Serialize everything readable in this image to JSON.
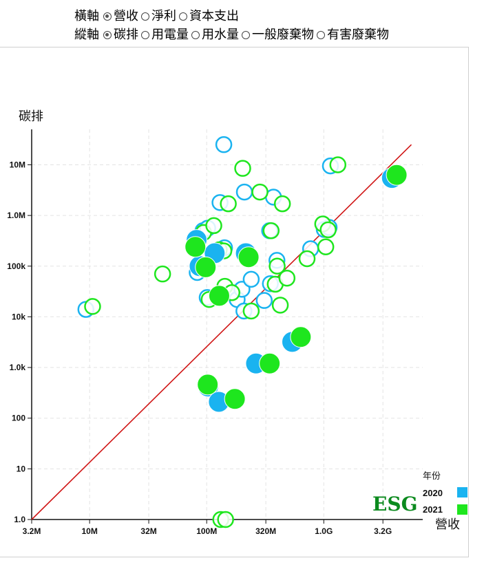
{
  "controls": {
    "x_label": "橫軸",
    "x_options": [
      {
        "label": "營收",
        "selected": true
      },
      {
        "label": "淨利",
        "selected": false
      },
      {
        "label": "資本支出",
        "selected": false
      }
    ],
    "y_label": "縱軸",
    "y_options": [
      {
        "label": "碳排",
        "selected": true
      },
      {
        "label": "用電量",
        "selected": false
      },
      {
        "label": "用水量",
        "selected": false
      },
      {
        "label": "一般廢棄物",
        "selected": false
      },
      {
        "label": "有害廢棄物",
        "selected": false
      }
    ]
  },
  "colors": {
    "y2020": "#1ab3f0",
    "y2021": "#1ee61e",
    "diagonal": "#d01515",
    "watermark": "#0b8a1e"
  },
  "watermark": "ESG",
  "chart_data": {
    "type": "scatter",
    "xlabel": "營收",
    "ylabel": "碳排",
    "xscale": "log",
    "yscale": "log",
    "xlim": [
      3200000,
      7000000000
    ],
    "ylim": [
      1,
      50000000
    ],
    "xticks": [
      {
        "v": 3200000,
        "label": "3.2M"
      },
      {
        "v": 10000000,
        "label": "10M"
      },
      {
        "v": 32000000,
        "label": "32M"
      },
      {
        "v": 100000000,
        "label": "100M"
      },
      {
        "v": 320000000,
        "label": "320M"
      },
      {
        "v": 1000000000,
        "label": "1.0G"
      },
      {
        "v": 3200000000,
        "label": "3.2G"
      }
    ],
    "yticks": [
      {
        "v": 1,
        "label": "1.0"
      },
      {
        "v": 10,
        "label": "10"
      },
      {
        "v": 100,
        "label": "100"
      },
      {
        "v": 1000,
        "label": "1.0k"
      },
      {
        "v": 10000,
        "label": "10k"
      },
      {
        "v": 100000,
        "label": "100k"
      },
      {
        "v": 1000000,
        "label": "1.0M"
      },
      {
        "v": 10000000,
        "label": "10M"
      }
    ],
    "grid": true,
    "legend": {
      "title": "年份",
      "position": "bottom-right",
      "entries": [
        "2020",
        "2021"
      ]
    },
    "reference_line": {
      "from": [
        3200000,
        1
      ],
      "to": [
        5600000000,
        25000000
      ]
    },
    "series": [
      {
        "name": "2020",
        "points": [
          {
            "x": 9300000,
            "y": 14000,
            "filled": false
          },
          {
            "x": 83000000,
            "y": 75000,
            "filled": false
          },
          {
            "x": 93000000,
            "y": 500000,
            "filled": false
          },
          {
            "x": 102000000,
            "y": 560000,
            "filled": false
          },
          {
            "x": 101000000,
            "y": 24000,
            "filled": false
          },
          {
            "x": 130000000,
            "y": 1800000,
            "filled": false
          },
          {
            "x": 140000000,
            "y": 25000000,
            "filled": false
          },
          {
            "x": 142000000,
            "y": 230000,
            "filled": false
          },
          {
            "x": 182000000,
            "y": 22000,
            "filled": false
          },
          {
            "x": 200000000,
            "y": 35000,
            "filled": false
          },
          {
            "x": 208000000,
            "y": 13000,
            "filled": false
          },
          {
            "x": 210000000,
            "y": 2900000,
            "filled": false
          },
          {
            "x": 240000000,
            "y": 55000,
            "filled": false
          },
          {
            "x": 310000000,
            "y": 21000,
            "filled": false
          },
          {
            "x": 345000000,
            "y": 500000,
            "filled": false
          },
          {
            "x": 350000000,
            "y": 45000,
            "filled": false
          },
          {
            "x": 372000000,
            "y": 2300000,
            "filled": false
          },
          {
            "x": 398000000,
            "y": 130000,
            "filled": false
          },
          {
            "x": 772000000,
            "y": 220000,
            "filled": false
          },
          {
            "x": 1010000000,
            "y": 530000,
            "filled": false
          },
          {
            "x": 1110000000,
            "y": 580000,
            "filled": false
          },
          {
            "x": 1140000000,
            "y": 9500000,
            "filled": false
          },
          {
            "x": 82000000,
            "y": 330000,
            "filled": true
          },
          {
            "x": 87000000,
            "y": 100000,
            "filled": true
          },
          {
            "x": 103000000,
            "y": 420,
            "filled": true
          },
          {
            "x": 117000000,
            "y": 180000,
            "filled": true
          },
          {
            "x": 127000000,
            "y": 210,
            "filled": true
          },
          {
            "x": 216000000,
            "y": 180000,
            "filled": true
          },
          {
            "x": 264000000,
            "y": 1200,
            "filled": true
          },
          {
            "x": 538000000,
            "y": 3200,
            "filled": true
          },
          {
            "x": 3820000000,
            "y": 5500000,
            "filled": true
          }
        ]
      },
      {
        "name": "2021",
        "points": [
          {
            "x": 10600000,
            "y": 16000,
            "filled": false
          },
          {
            "x": 42000000,
            "y": 70000,
            "filled": false
          },
          {
            "x": 94000000,
            "y": 460000,
            "filled": false
          },
          {
            "x": 105000000,
            "y": 22000,
            "filled": false
          },
          {
            "x": 115000000,
            "y": 630000,
            "filled": false
          },
          {
            "x": 128000000,
            "y": 210000,
            "filled": false
          },
          {
            "x": 132000000,
            "y": 1,
            "filled": false
          },
          {
            "x": 140000000,
            "y": 200000,
            "filled": false
          },
          {
            "x": 143000000,
            "y": 40000,
            "filled": false
          },
          {
            "x": 145000000,
            "y": 1,
            "filled": false
          },
          {
            "x": 153000000,
            "y": 1700000,
            "filled": false
          },
          {
            "x": 164000000,
            "y": 30000,
            "filled": false
          },
          {
            "x": 203000000,
            "y": 8500000,
            "filled": false
          },
          {
            "x": 240000000,
            "y": 13000,
            "filled": false
          },
          {
            "x": 285000000,
            "y": 2900000,
            "filled": false
          },
          {
            "x": 355000000,
            "y": 500000,
            "filled": false
          },
          {
            "x": 385000000,
            "y": 44000,
            "filled": false
          },
          {
            "x": 400000000,
            "y": 100000,
            "filled": false
          },
          {
            "x": 425000000,
            "y": 17000,
            "filled": false
          },
          {
            "x": 443000000,
            "y": 1700000,
            "filled": false
          },
          {
            "x": 485000000,
            "y": 58000,
            "filled": false
          },
          {
            "x": 720000000,
            "y": 140000,
            "filled": false
          },
          {
            "x": 980000000,
            "y": 680000,
            "filled": false
          },
          {
            "x": 1040000000,
            "y": 240000,
            "filled": false
          },
          {
            "x": 1090000000,
            "y": 520000,
            "filled": false
          },
          {
            "x": 1320000000,
            "y": 10000000,
            "filled": false
          },
          {
            "x": 80000000,
            "y": 240000,
            "filled": true
          },
          {
            "x": 102000000,
            "y": 460,
            "filled": true
          },
          {
            "x": 98000000,
            "y": 95000,
            "filled": true
          },
          {
            "x": 128000000,
            "y": 26000,
            "filled": true
          },
          {
            "x": 174000000,
            "y": 240,
            "filled": true
          },
          {
            "x": 228000000,
            "y": 150000,
            "filled": true
          },
          {
            "x": 345000000,
            "y": 1200,
            "filled": true
          },
          {
            "x": 636000000,
            "y": 4000,
            "filled": true
          },
          {
            "x": 4190000000,
            "y": 6300000,
            "filled": true
          }
        ]
      }
    ]
  }
}
